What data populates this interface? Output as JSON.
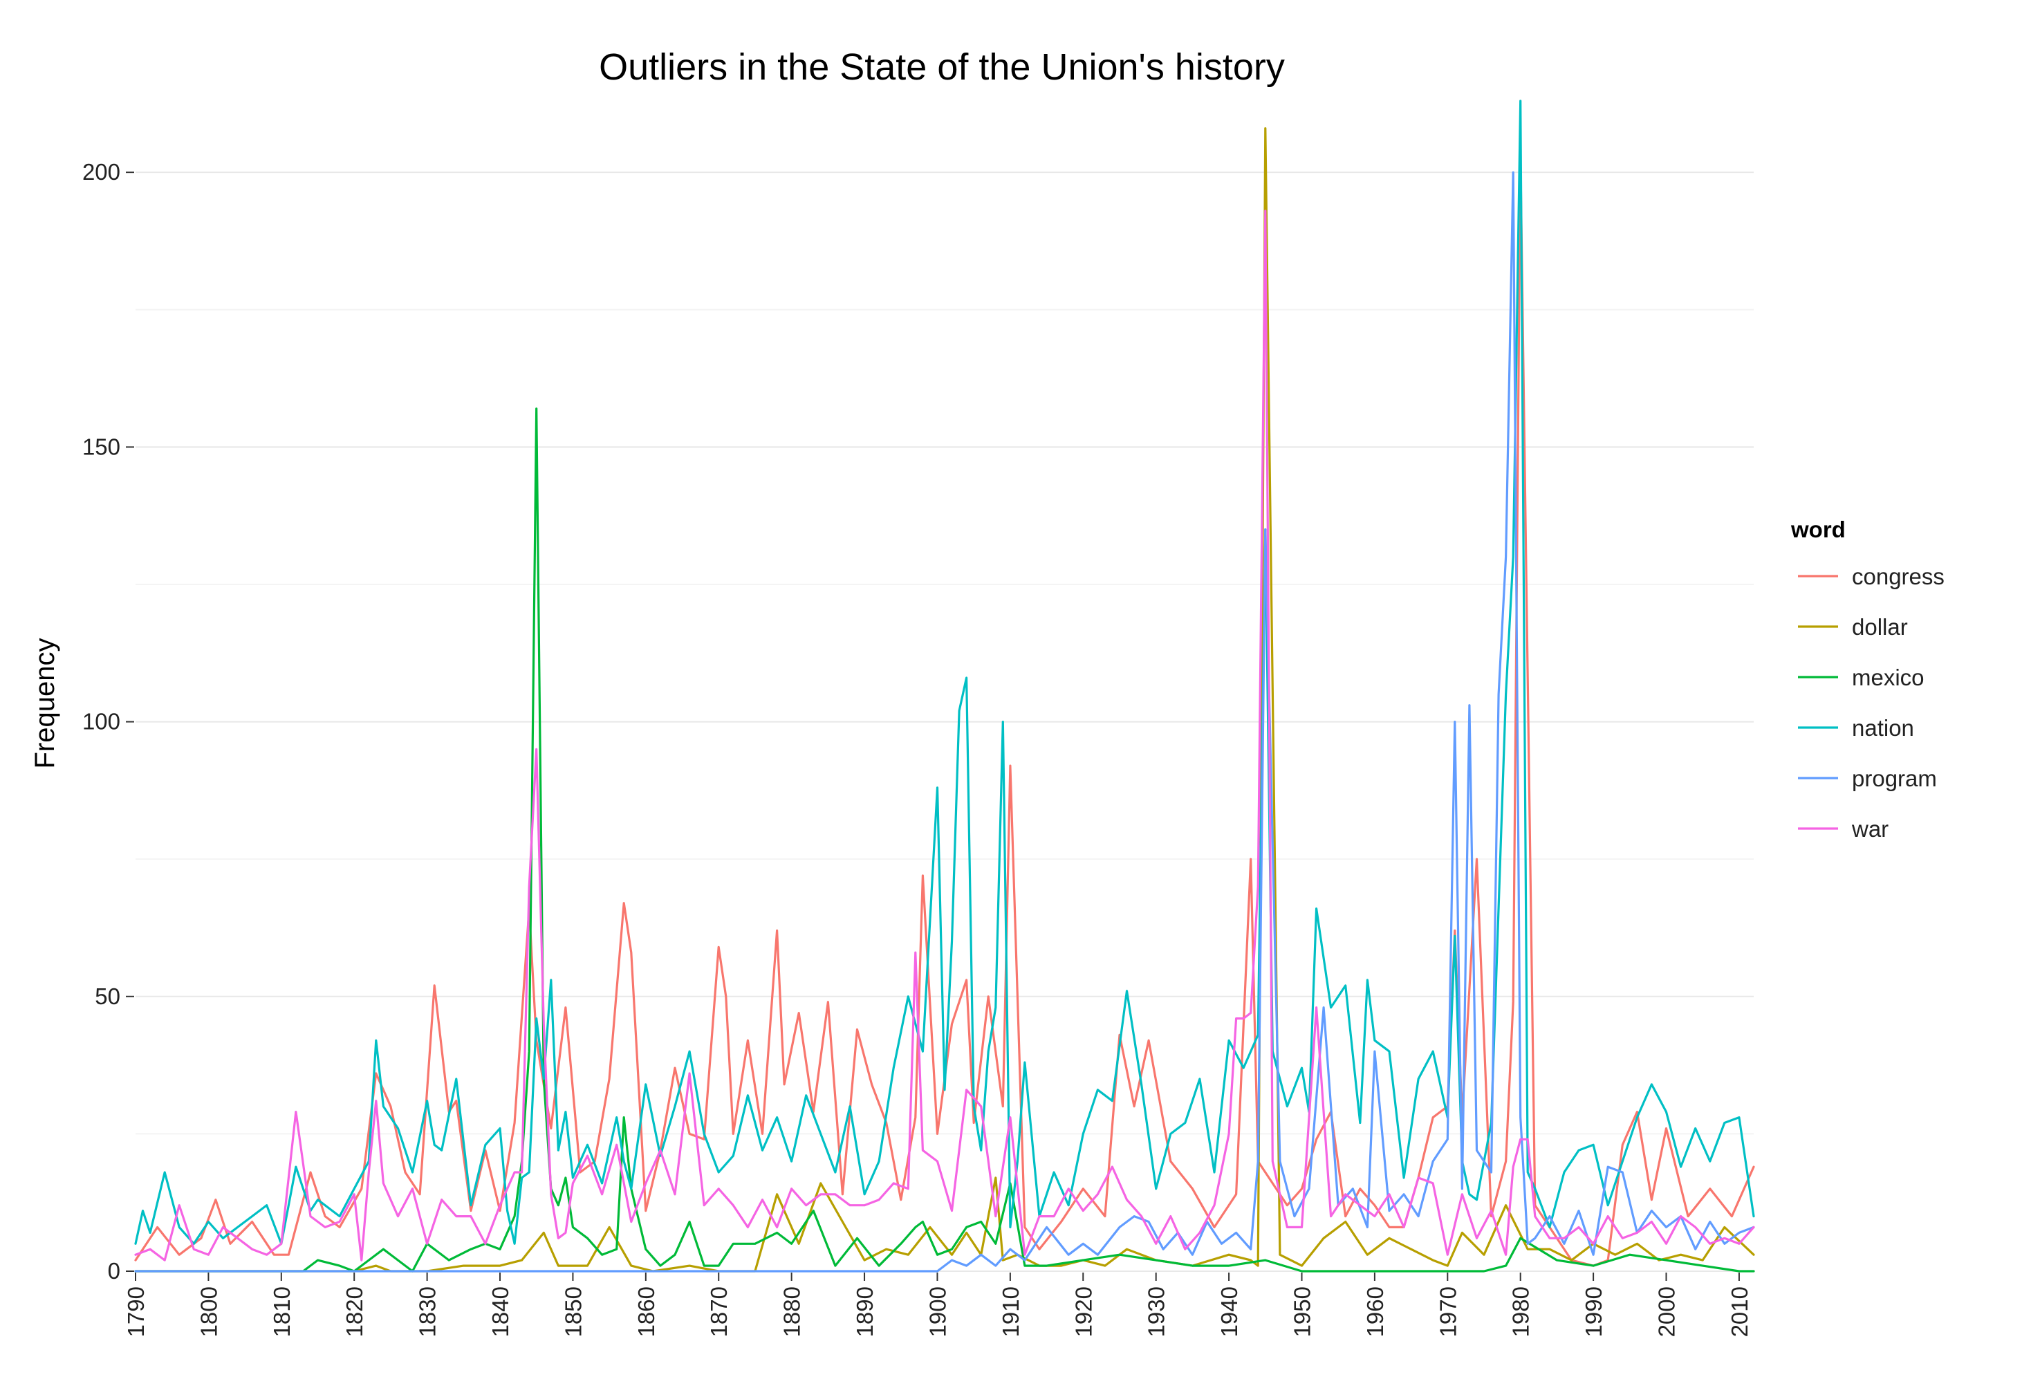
{
  "chart_data": {
    "type": "line",
    "title": "Outliers in the State of the Union's history",
    "xlabel": "",
    "ylabel": "Frequency",
    "xlim": [
      1790,
      2012
    ],
    "ylim": [
      0,
      215
    ],
    "yticks": [
      0,
      50,
      100,
      150,
      200
    ],
    "xticks": [
      1790,
      1800,
      1810,
      1820,
      1830,
      1840,
      1850,
      1860,
      1870,
      1880,
      1890,
      1900,
      1910,
      1920,
      1930,
      1940,
      1950,
      1960,
      1970,
      1980,
      1990,
      2000,
      2010
    ],
    "grid": true,
    "legend": {
      "title": "word",
      "position": "right"
    },
    "series": [
      {
        "name": "congress",
        "color": "#F8766D",
        "x": [
          1790,
          1793,
          1796,
          1799,
          1801,
          1803,
          1806,
          1809,
          1811,
          1814,
          1816,
          1818,
          1821,
          1823,
          1825,
          1827,
          1829,
          1831,
          1833,
          1834,
          1836,
          1838,
          1840,
          1842,
          1844,
          1845,
          1847,
          1849,
          1851,
          1853,
          1855,
          1857,
          1858,
          1860,
          1862,
          1864,
          1866,
          1868,
          1870,
          1871,
          1872,
          1874,
          1876,
          1878,
          1879,
          1881,
          1883,
          1885,
          1887,
          1889,
          1891,
          1893,
          1895,
          1897,
          1898,
          1900,
          1902,
          1904,
          1905,
          1907,
          1909,
          1910,
          1912,
          1914,
          1917,
          1920,
          1923,
          1925,
          1927,
          1929,
          1932,
          1935,
          1938,
          1941,
          1943,
          1944,
          1946,
          1948,
          1950,
          1952,
          1954,
          1956,
          1958,
          1960,
          1962,
          1964,
          1966,
          1968,
          1970,
          1971,
          1972,
          1974,
          1976,
          1978,
          1979,
          1980,
          1982,
          1984,
          1987,
          1990,
          1992,
          1994,
          1996,
          1998,
          2000,
          2003,
          2006,
          2009,
          2012
        ],
        "y": [
          2,
          8,
          3,
          6,
          13,
          5,
          9,
          3,
          3,
          18,
          10,
          8,
          15,
          36,
          30,
          18,
          14,
          52,
          29,
          31,
          11,
          22,
          11,
          27,
          66,
          42,
          26,
          48,
          18,
          20,
          35,
          67,
          58,
          11,
          22,
          37,
          25,
          24,
          59,
          50,
          25,
          42,
          25,
          62,
          34,
          47,
          29,
          49,
          14,
          44,
          34,
          27,
          13,
          28,
          72,
          25,
          45,
          53,
          27,
          50,
          30,
          92,
          8,
          4,
          9,
          15,
          10,
          43,
          30,
          42,
          20,
          15,
          8,
          14,
          75,
          20,
          16,
          12,
          15,
          24,
          29,
          10,
          15,
          12,
          8,
          8,
          17,
          28,
          30,
          62,
          28,
          75,
          10,
          20,
          49,
          203,
          12,
          8,
          2,
          1,
          2,
          23,
          29,
          13,
          26,
          10,
          15,
          10,
          19
        ]
      },
      {
        "name": "dollar",
        "color": "#B79F00",
        "x": [
          1790,
          1800,
          1810,
          1820,
          1823,
          1825,
          1830,
          1835,
          1840,
          1843,
          1846,
          1848,
          1852,
          1855,
          1858,
          1861,
          1866,
          1870,
          1875,
          1878,
          1881,
          1884,
          1887,
          1890,
          1893,
          1896,
          1899,
          1902,
          1904,
          1906,
          1908,
          1909,
          1911,
          1914,
          1917,
          1920,
          1923,
          1926,
          1930,
          1935,
          1940,
          1943,
          1944,
          1945,
          1947,
          1950,
          1953,
          1956,
          1959,
          1962,
          1965,
          1968,
          1970,
          1972,
          1975,
          1978,
          1981,
          1984,
          1987,
          1990,
          1993,
          1996,
          1999,
          2002,
          2005,
          2008,
          2012
        ],
        "y": [
          0,
          0,
          0,
          0,
          1,
          0,
          0,
          1,
          1,
          2,
          7,
          1,
          1,
          8,
          1,
          0,
          1,
          0,
          0,
          14,
          5,
          16,
          9,
          2,
          4,
          3,
          8,
          3,
          7,
          3,
          17,
          2,
          3,
          1,
          1,
          2,
          1,
          4,
          2,
          1,
          3,
          2,
          1,
          208,
          3,
          1,
          6,
          9,
          3,
          6,
          4,
          2,
          1,
          7,
          3,
          12,
          4,
          4,
          2,
          5,
          3,
          5,
          2,
          3,
          2,
          8,
          3
        ]
      },
      {
        "name": "mexico",
        "color": "#00BA38",
        "x": [
          1790,
          1810,
          1813,
          1815,
          1818,
          1820,
          1822,
          1824,
          1826,
          1828,
          1830,
          1833,
          1836,
          1838,
          1840,
          1842,
          1843,
          1844,
          1845,
          1846,
          1847,
          1848,
          1849,
          1850,
          1852,
          1854,
          1856,
          1857,
          1858,
          1860,
          1862,
          1864,
          1866,
          1868,
          1870,
          1872,
          1875,
          1878,
          1880,
          1883,
          1886,
          1889,
          1892,
          1895,
          1897,
          1898,
          1900,
          1902,
          1904,
          1906,
          1908,
          1910,
          1912,
          1915,
          1920,
          1925,
          1930,
          1935,
          1940,
          1945,
          1950,
          1960,
          1970,
          1975,
          1978,
          1980,
          1985,
          1990,
          1995,
          2000,
          2005,
          2010,
          2012
        ],
        "y": [
          0,
          0,
          0,
          2,
          1,
          0,
          2,
          4,
          2,
          0,
          5,
          2,
          4,
          5,
          4,
          10,
          20,
          40,
          157,
          35,
          15,
          12,
          17,
          8,
          6,
          3,
          4,
          28,
          15,
          4,
          1,
          3,
          9,
          1,
          1,
          5,
          5,
          7,
          5,
          11,
          1,
          6,
          1,
          5,
          8,
          9,
          3,
          4,
          8,
          9,
          5,
          16,
          1,
          1,
          2,
          3,
          2,
          1,
          1,
          2,
          0,
          0,
          0,
          0,
          1,
          6,
          2,
          1,
          3,
          2,
          1,
          0,
          0
        ]
      },
      {
        "name": "nation",
        "color": "#00BFC4",
        "x": [
          1790,
          1791,
          1792,
          1794,
          1796,
          1798,
          1800,
          1802,
          1804,
          1806,
          1808,
          1810,
          1812,
          1814,
          1815,
          1818,
          1820,
          1822,
          1823,
          1824,
          1826,
          1828,
          1830,
          1831,
          1832,
          1834,
          1836,
          1838,
          1840,
          1841,
          1842,
          1843,
          1844,
          1845,
          1846,
          1847,
          1848,
          1849,
          1850,
          1852,
          1854,
          1856,
          1857,
          1858,
          1860,
          1862,
          1864,
          1866,
          1868,
          1870,
          1872,
          1874,
          1876,
          1878,
          1880,
          1882,
          1884,
          1886,
          1888,
          1890,
          1892,
          1894,
          1896,
          1898,
          1900,
          1901,
          1902,
          1903,
          1904,
          1905,
          1906,
          1907,
          1908,
          1909,
          1910,
          1911,
          1912,
          1914,
          1916,
          1918,
          1920,
          1922,
          1924,
          1926,
          1928,
          1930,
          1932,
          1934,
          1936,
          1938,
          1940,
          1942,
          1944,
          1945,
          1946,
          1948,
          1950,
          1951,
          1952,
          1954,
          1956,
          1958,
          1959,
          1960,
          1962,
          1964,
          1966,
          1968,
          1970,
          1971,
          1972,
          1973,
          1974,
          1976,
          1978,
          1979,
          1980,
          1981,
          1982,
          1984,
          1986,
          1988,
          1990,
          1992,
          1994,
          1996,
          1998,
          2000,
          2002,
          2004,
          2006,
          2008,
          2010,
          2012
        ],
        "y": [
          5,
          11,
          7,
          18,
          8,
          5,
          9,
          6,
          8,
          10,
          12,
          5,
          19,
          11,
          13,
          10,
          15,
          20,
          42,
          30,
          26,
          18,
          31,
          23,
          22,
          35,
          12,
          23,
          26,
          11,
          5,
          17,
          18,
          46,
          35,
          53,
          22,
          29,
          17,
          23,
          16,
          28,
          20,
          15,
          34,
          21,
          30,
          40,
          25,
          18,
          21,
          32,
          22,
          28,
          20,
          32,
          25,
          18,
          30,
          14,
          20,
          37,
          50,
          40,
          88,
          33,
          60,
          102,
          108,
          30,
          22,
          40,
          48,
          100,
          8,
          20,
          38,
          10,
          18,
          12,
          25,
          33,
          31,
          51,
          34,
          15,
          25,
          27,
          35,
          18,
          42,
          37,
          43,
          135,
          40,
          30,
          37,
          29,
          66,
          48,
          52,
          27,
          53,
          42,
          40,
          17,
          35,
          40,
          28,
          61,
          20,
          14,
          13,
          27,
          105,
          130,
          213,
          18,
          15,
          8,
          18,
          22,
          23,
          12,
          20,
          28,
          34,
          29,
          19,
          26,
          20,
          27,
          28,
          10
        ]
      },
      {
        "name": "program",
        "color": "#619CFF",
        "x": [
          1790,
          1900,
          1902,
          1904,
          1906,
          1908,
          1910,
          1912,
          1915,
          1918,
          1920,
          1922,
          1925,
          1927,
          1929,
          1931,
          1933,
          1935,
          1937,
          1939,
          1941,
          1943,
          1944,
          1945,
          1947,
          1949,
          1951,
          1953,
          1955,
          1957,
          1959,
          1960,
          1962,
          1964,
          1966,
          1968,
          1970,
          1971,
          1972,
          1973,
          1974,
          1976,
          1977,
          1978,
          1979,
          1980,
          1981,
          1982,
          1984,
          1986,
          1988,
          1990,
          1992,
          1994,
          1996,
          1998,
          2000,
          2002,
          2004,
          2006,
          2008,
          2010,
          2012
        ],
        "y": [
          0,
          0,
          2,
          1,
          3,
          1,
          4,
          2,
          8,
          3,
          5,
          3,
          8,
          10,
          9,
          4,
          7,
          3,
          9,
          5,
          7,
          4,
          20,
          135,
          20,
          10,
          15,
          48,
          12,
          15,
          8,
          40,
          11,
          14,
          10,
          20,
          24,
          100,
          15,
          103,
          22,
          18,
          105,
          130,
          200,
          28,
          5,
          6,
          10,
          5,
          11,
          3,
          19,
          18,
          7,
          11,
          8,
          10,
          4,
          9,
          5,
          7,
          8
        ]
      },
      {
        "name": "war",
        "color": "#F564E3",
        "x": [
          1790,
          1792,
          1794,
          1796,
          1798,
          1800,
          1802,
          1804,
          1806,
          1808,
          1810,
          1812,
          1814,
          1816,
          1818,
          1820,
          1821,
          1822,
          1823,
          1824,
          1826,
          1828,
          1830,
          1832,
          1834,
          1836,
          1838,
          1840,
          1842,
          1843,
          1844,
          1845,
          1846,
          1847,
          1848,
          1849,
          1850,
          1852,
          1854,
          1856,
          1858,
          1860,
          1862,
          1864,
          1866,
          1868,
          1870,
          1872,
          1874,
          1876,
          1878,
          1880,
          1882,
          1884,
          1886,
          1888,
          1890,
          1892,
          1894,
          1896,
          1897,
          1898,
          1900,
          1902,
          1904,
          1906,
          1908,
          1910,
          1912,
          1914,
          1916,
          1918,
          1920,
          1922,
          1924,
          1926,
          1928,
          1930,
          1932,
          1934,
          1936,
          1938,
          1940,
          1941,
          1942,
          1943,
          1944,
          1945,
          1946,
          1948,
          1950,
          1952,
          1954,
          1956,
          1958,
          1960,
          1962,
          1964,
          1966,
          1968,
          1970,
          1972,
          1974,
          1976,
          1978,
          1979,
          1980,
          1981,
          1982,
          1984,
          1986,
          1988,
          1990,
          1992,
          1994,
          1996,
          1998,
          2000,
          2002,
          2004,
          2006,
          2008,
          2010,
          2012
        ],
        "y": [
          3,
          4,
          2,
          12,
          4,
          3,
          8,
          6,
          4,
          3,
          5,
          29,
          10,
          8,
          9,
          14,
          2,
          18,
          31,
          16,
          10,
          15,
          5,
          13,
          10,
          10,
          5,
          12,
          18,
          18,
          70,
          95,
          45,
          14,
          6,
          7,
          16,
          21,
          14,
          23,
          9,
          16,
          22,
          14,
          36,
          12,
          15,
          12,
          8,
          13,
          8,
          15,
          12,
          14,
          14,
          12,
          12,
          13,
          16,
          15,
          58,
          22,
          20,
          11,
          33,
          30,
          10,
          28,
          3,
          10,
          10,
          15,
          11,
          14,
          19,
          13,
          10,
          5,
          10,
          4,
          7,
          12,
          25,
          46,
          46,
          47,
          70,
          193,
          20,
          8,
          8,
          48,
          10,
          14,
          12,
          10,
          14,
          8,
          17,
          16,
          3,
          14,
          6,
          11,
          3,
          19,
          24,
          24,
          10,
          6,
          6,
          8,
          5,
          10,
          6,
          7,
          9,
          5,
          10,
          8,
          5,
          6,
          5,
          8
        ]
      }
    ]
  }
}
